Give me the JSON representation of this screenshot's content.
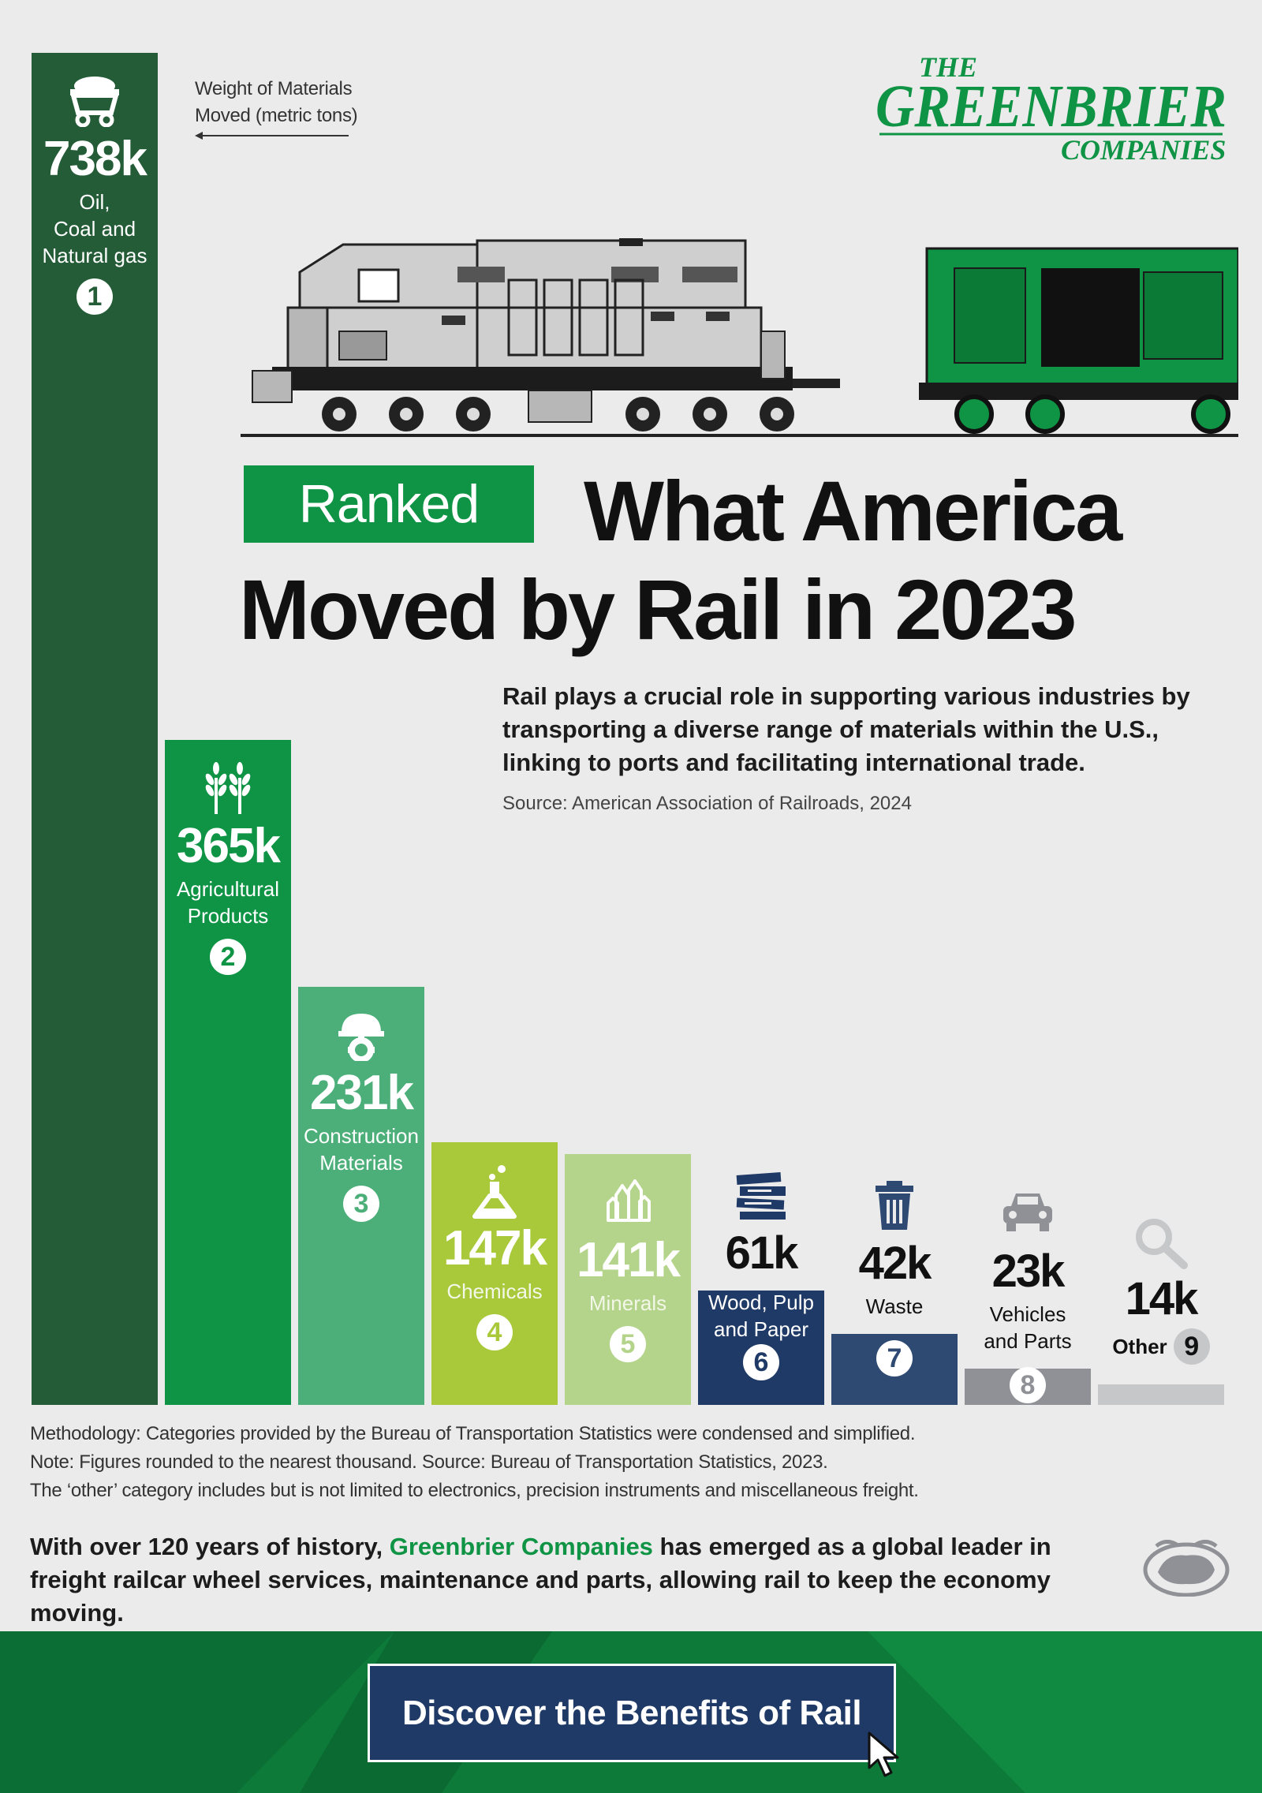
{
  "legend": {
    "line1": "Weight of Materials",
    "line2": "Moved (metric tons)"
  },
  "logo": {
    "the": "THE",
    "name": "GREENBRIER",
    "companies": "COMPANIES"
  },
  "header": {
    "badge": "Ranked",
    "title_line1": "What America",
    "title_line2": "Moved by Rail in 2023"
  },
  "intro": "Rail plays a crucial role in supporting various industries by transporting a diverse range of materials within the U.S., linking to ports and facilitating international trade.",
  "source": "Source: American Association of Railroads, 2024",
  "chart_data": {
    "type": "bar",
    "title": "What America Moved by Rail in 2023",
    "ylabel": "Weight of Materials Moved (metric tons)",
    "unit": "metric tons",
    "categories": [
      "Oil, Coal and Natural gas",
      "Agricultural Products",
      "Construction Materials",
      "Chemicals",
      "Minerals",
      "Wood, Pulp and Paper",
      "Waste",
      "Vehicles and Parts",
      "Other"
    ],
    "values": [
      738000,
      365000,
      231000,
      147000,
      141000,
      61000,
      42000,
      23000,
      14000
    ],
    "value_labels": [
      "738k",
      "365k",
      "231k",
      "147k",
      "141k",
      "61k",
      "42k",
      "23k",
      "14k"
    ],
    "category_lines": [
      [
        "Oil,",
        "Coal and",
        "Natural gas"
      ],
      [
        "Agricultural",
        "Products"
      ],
      [
        "Construction",
        "Materials"
      ],
      [
        "Chemicals"
      ],
      [
        "Minerals"
      ],
      [
        "Wood, Pulp",
        "and Paper"
      ],
      [
        "Waste"
      ],
      [
        "Vehicles",
        "and Parts"
      ],
      [
        "Other"
      ]
    ],
    "ranks": [
      "1",
      "2",
      "3",
      "4",
      "5",
      "6",
      "7",
      "8",
      "9"
    ],
    "icons": [
      "coal-cart-icon",
      "wheat-icon",
      "hard-hat-gear-icon",
      "flask-icon",
      "crystal-icon",
      "stacked-wood-icon",
      "trash-can-icon",
      "car-icon",
      "magnifier-icon"
    ],
    "colors": [
      "#245c37",
      "#0e9444",
      "#4caf79",
      "#a9c93a",
      "#b3d48a",
      "#1f3a66",
      "#2f4a72",
      "#8f9196",
      "#c6c7c9"
    ],
    "ylim": [
      0,
      740000
    ],
    "grid": false,
    "legend": "none"
  },
  "methodology": [
    "Methodology: Categories provided by the Bureau of Transportation Statistics were condensed and simplified.",
    "Note: Figures rounded to the nearest thousand. Source: Bureau of Transportation Statistics, 2023.",
    "The ‘other’ category includes but is not limited to electronics, precision instruments and miscellaneous freight."
  ],
  "closing": {
    "before": "With over 120 years of history, ",
    "brand": "Greenbrier Companies",
    "after": " has emerged as a global leader in freight railcar wheel services, maintenance and parts, allowing rail to keep the economy moving."
  },
  "cta": {
    "label": "Discover the Benefits of Rail"
  }
}
